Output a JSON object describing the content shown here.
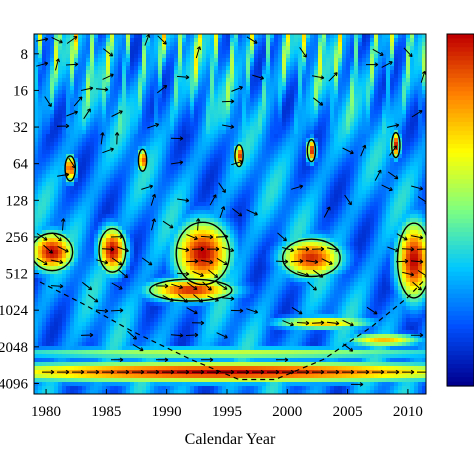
{
  "chart_data": {
    "type": "heatmap",
    "subtype": "wavelet coherence spectrum with phase arrows",
    "title": "",
    "xlabel": "Calendar Year",
    "ylabel": "",
    "x_ticks": [
      "1980",
      "1985",
      "1990",
      "1995",
      "2000",
      "2005",
      "2010"
    ],
    "x_tick_values": [
      1980,
      1985,
      1990,
      1995,
      2000,
      2005,
      2010
    ],
    "xlim": [
      1979,
      2011.5
    ],
    "y_ticks": [
      "8",
      "16",
      "32",
      "64",
      "128",
      "256",
      "512",
      "1024",
      "2048",
      "4096"
    ],
    "y_tick_values": [
      8,
      16,
      32,
      64,
      128,
      256,
      512,
      1024,
      2048,
      4096
    ],
    "y_scale": "log2",
    "y_direction": "period increases downward",
    "ylim": [
      5.5,
      5000
    ],
    "colorbar": {
      "present": true,
      "placement": "right",
      "tick_labels": "cropped",
      "colormap": [
        "#00008f",
        "#0050ff",
        "#00c8ff",
        "#7fff80",
        "#ffff00",
        "#ff8000",
        "#c00000"
      ]
    },
    "coi_dashed": [
      [
        1979.5,
        600
      ],
      [
        1983,
        900
      ],
      [
        1987,
        1500
      ],
      [
        1992,
        2600
      ],
      [
        1996,
        3800
      ],
      [
        1999,
        3800
      ],
      [
        2003,
        2600
      ],
      [
        2007,
        1400
      ],
      [
        2010,
        800
      ],
      [
        2011.5,
        560
      ]
    ],
    "hotspots": [
      {
        "x": 1980.5,
        "y": 340,
        "rx_years": 2.0,
        "ry_octaves": 0.6,
        "level": 1.0
      },
      {
        "x": 1985.5,
        "y": 330,
        "rx_years": 1.3,
        "ry_octaves": 0.7,
        "level": 1.0
      },
      {
        "x": 1993,
        "y": 350,
        "rx_years": 2.6,
        "ry_octaves": 1.0,
        "level": 1.0
      },
      {
        "x": 1992,
        "y": 700,
        "rx_years": 4.0,
        "ry_octaves": 0.35,
        "level": 0.95
      },
      {
        "x": 2002,
        "y": 380,
        "rx_years": 2.8,
        "ry_octaves": 0.6,
        "level": 0.95
      },
      {
        "x": 2010.5,
        "y": 400,
        "rx_years": 1.6,
        "ry_octaves": 1.2,
        "level": 1.0
      },
      {
        "x": 2003,
        "y": 1300,
        "rx_years": 4.5,
        "ry_octaves": 0.2,
        "level": 0.75
      },
      {
        "x": 2008,
        "y": 1800,
        "rx_years": 3.5,
        "ry_octaves": 0.2,
        "level": 0.75
      },
      {
        "x": 1995,
        "y": 3300,
        "rx_years": 25,
        "ry_octaves": 0.3,
        "level": 1.0
      },
      {
        "x": 1995,
        "y": 2300,
        "rx_years": 25,
        "ry_octaves": 0.18,
        "level": 0.6
      },
      {
        "x": 1982,
        "y": 70,
        "rx_years": 0.5,
        "ry_octaves": 0.4,
        "level": 0.95
      },
      {
        "x": 1988,
        "y": 60,
        "rx_years": 0.4,
        "ry_octaves": 0.35,
        "level": 0.95
      },
      {
        "x": 1996,
        "y": 55,
        "rx_years": 0.4,
        "ry_octaves": 0.35,
        "level": 0.95
      },
      {
        "x": 2002,
        "y": 50,
        "rx_years": 0.4,
        "ry_octaves": 0.35,
        "level": 0.95
      },
      {
        "x": 2009,
        "y": 45,
        "rx_years": 0.4,
        "ry_octaves": 0.4,
        "level": 0.95
      }
    ]
  }
}
